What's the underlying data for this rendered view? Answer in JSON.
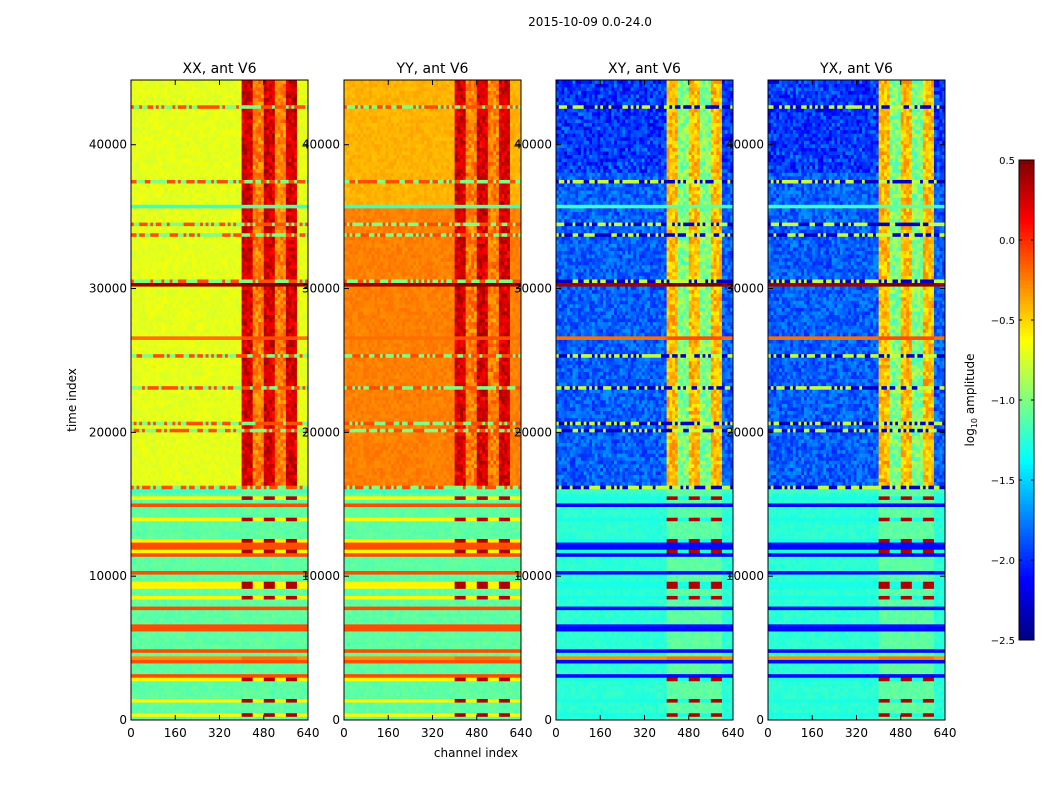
{
  "chart_data": {
    "type": "heatmap",
    "title": "2015-10-09 0.0-24.0",
    "xlabel": "channel index",
    "ylabel": "time index",
    "x_ticks": [
      0,
      160,
      320,
      480,
      640
    ],
    "x_tick_labels": [
      "0",
      "160",
      "320",
      "480",
      "640"
    ],
    "y_ticks": [
      0,
      10000,
      20000,
      30000,
      40000
    ],
    "y_tick_labels": [
      "0",
      "10000",
      "20000",
      "30000",
      "40000"
    ],
    "xlim": [
      0,
      640
    ],
    "ylim": [
      0,
      44500
    ],
    "panels": [
      {
        "title": "XX, ant V6",
        "mode": "auto"
      },
      {
        "title": "YY, ant V6",
        "mode": "auto"
      },
      {
        "title": "XY, ant V6",
        "mode": "cross"
      },
      {
        "title": "YX, ant V6",
        "mode": "cross"
      }
    ],
    "colorbar": {
      "label": "log10 amplitude",
      "label_main": "log",
      "label_sub": "10",
      "label_rest": " amplitude",
      "min": -2.5,
      "max": 0.5,
      "ticks": [
        -2.5,
        -2.0,
        -1.5,
        -1.0,
        -0.5,
        0.0,
        0.5
      ],
      "tick_labels": [
        "−2.5",
        "−2.0",
        "−1.5",
        "−1.0",
        "−0.5",
        "0.0",
        "0.5"
      ],
      "colormap": "jet"
    },
    "rfi_band_channels": [
      400,
      600
    ],
    "notable_rows": [
      {
        "time": 30300,
        "amplitude": 0.4
      },
      {
        "time": 26500,
        "amplitude": -0.2
      },
      {
        "time": 35700,
        "amplitude": -1.2
      },
      {
        "time": 15900,
        "amplitude": -1.2
      },
      {
        "time": 4300,
        "amplitude": -0.3
      }
    ],
    "low_region_time_max": 16000,
    "low_region_amplitude": -1.1
  }
}
